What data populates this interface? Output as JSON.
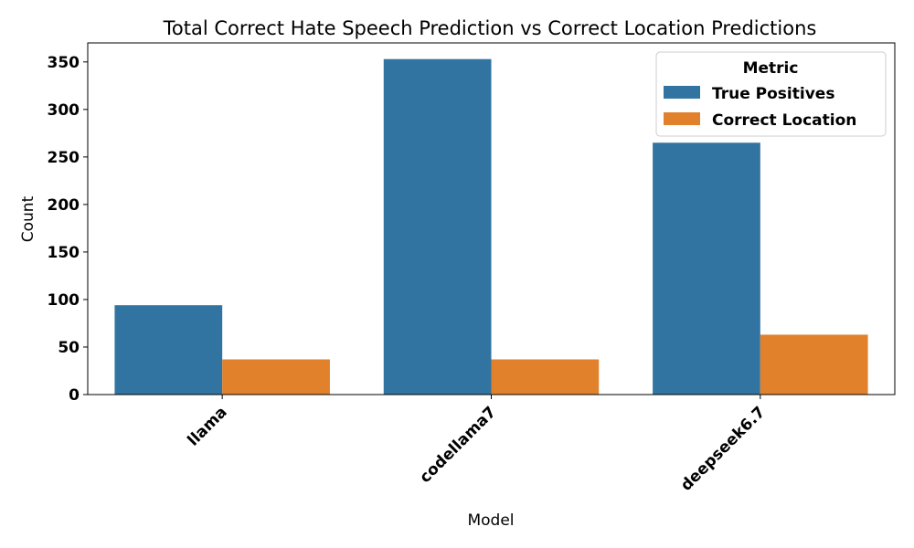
{
  "chart_data": {
    "type": "bar",
    "title": "Total Correct Hate Speech Prediction vs Correct Location Predictions",
    "xlabel": "Model",
    "ylabel": "Count",
    "categories": [
      "llama",
      "codellama7",
      "deepseek6.7"
    ],
    "series": [
      {
        "name": "True Positives",
        "values": [
          94,
          353,
          265
        ],
        "color": "#3274a1"
      },
      {
        "name": "Correct Location",
        "values": [
          37,
          37,
          63
        ],
        "color": "#e1812c"
      }
    ],
    "ylim": [
      0,
      370
    ],
    "yticks": [
      0,
      50,
      100,
      150,
      200,
      250,
      300,
      350
    ],
    "grid": false,
    "legend": {
      "title": "Metric",
      "placement": "top-right"
    }
  }
}
